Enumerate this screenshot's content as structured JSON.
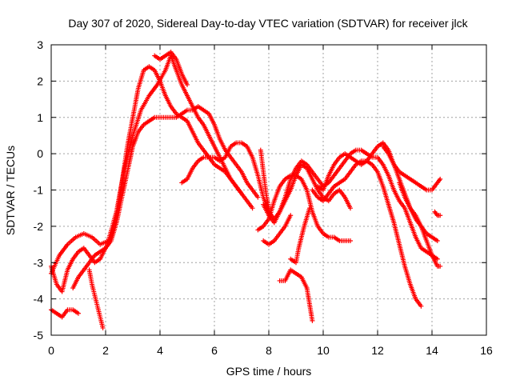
{
  "chart_data": {
    "type": "scatter",
    "title": "Day 307 of 2020, Sidereal Day-to-day VTEC variation (SDTVAR) for receiver jlck",
    "xlabel": "GPS time / hours",
    "ylabel": "SDTVAR / TECUs",
    "xlim": [
      0,
      16
    ],
    "ylim": [
      -5,
      3
    ],
    "xticks": [
      0,
      2,
      4,
      6,
      8,
      10,
      12,
      14,
      16
    ],
    "yticks": [
      -5,
      -4,
      -3,
      -2,
      -1,
      0,
      1,
      2,
      3
    ],
    "grid": true,
    "marker": "+",
    "color": "#ff0000",
    "series": [
      {
        "points": [
          [
            0.0,
            -3.1
          ],
          [
            0.2,
            -3.6
          ],
          [
            0.4,
            -3.8
          ],
          [
            0.6,
            -3.2
          ],
          [
            0.8,
            -2.9
          ],
          [
            1.0,
            -2.7
          ],
          [
            1.2,
            -2.6
          ],
          [
            1.4,
            -2.8
          ],
          [
            1.6,
            -3.0
          ],
          [
            1.8,
            -2.9
          ],
          [
            2.0,
            -2.6
          ],
          [
            2.2,
            -2.3
          ],
          [
            2.4,
            -1.7
          ],
          [
            2.6,
            -0.8
          ],
          [
            2.8,
            0.2
          ],
          [
            3.0,
            1.0
          ],
          [
            3.2,
            1.8
          ],
          [
            3.4,
            2.3
          ],
          [
            3.6,
            2.4
          ],
          [
            3.8,
            2.3
          ],
          [
            4.0,
            2.0
          ],
          [
            4.2,
            1.6
          ],
          [
            4.4,
            1.3
          ],
          [
            4.6,
            1.1
          ],
          [
            4.8,
            1.0
          ],
          [
            5.0,
            0.9
          ],
          [
            5.2,
            0.6
          ],
          [
            5.4,
            0.3
          ],
          [
            5.6,
            0.1
          ],
          [
            5.8,
            -0.1
          ],
          [
            6.0,
            -0.3
          ],
          [
            6.2,
            -0.4
          ],
          [
            6.4,
            -0.5
          ],
          [
            6.6,
            -0.7
          ],
          [
            6.8,
            -0.9
          ],
          [
            7.0,
            -1.1
          ]
        ]
      },
      {
        "points": [
          [
            0.0,
            -3.3
          ],
          [
            0.3,
            -2.8
          ],
          [
            0.6,
            -2.5
          ],
          [
            0.9,
            -2.3
          ],
          [
            1.2,
            -2.2
          ],
          [
            1.5,
            -2.3
          ],
          [
            1.8,
            -2.5
          ],
          [
            2.1,
            -2.4
          ],
          [
            2.4,
            -1.6
          ],
          [
            2.7,
            -0.4
          ],
          [
            3.0,
            0.5
          ],
          [
            3.3,
            1.2
          ],
          [
            3.6,
            1.6
          ],
          [
            3.9,
            1.9
          ],
          [
            4.2,
            2.3
          ],
          [
            4.4,
            2.7
          ],
          [
            4.6,
            2.3
          ],
          [
            4.8,
            1.9
          ],
          [
            5.0,
            1.6
          ],
          [
            5.2,
            1.3
          ],
          [
            5.4,
            1.0
          ],
          [
            5.6,
            0.8
          ],
          [
            5.8,
            0.5
          ],
          [
            6.0,
            0.2
          ],
          [
            6.2,
            -0.1
          ],
          [
            6.4,
            -0.4
          ],
          [
            6.6,
            -0.7
          ],
          [
            6.8,
            -0.9
          ],
          [
            7.0,
            -1.1
          ],
          [
            7.2,
            -1.3
          ],
          [
            7.4,
            -1.5
          ]
        ]
      },
      {
        "points": [
          [
            0.8,
            -3.7
          ],
          [
            1.0,
            -3.4
          ],
          [
            1.2,
            -3.2
          ],
          [
            1.4,
            -3.0
          ],
          [
            1.6,
            -2.8
          ],
          [
            1.8,
            -2.7
          ],
          [
            2.0,
            -2.6
          ],
          [
            2.2,
            -2.4
          ],
          [
            2.4,
            -1.9
          ],
          [
            2.6,
            -1.2
          ],
          [
            2.8,
            -0.5
          ],
          [
            3.0,
            0.2
          ],
          [
            3.2,
            0.6
          ],
          [
            3.4,
            0.8
          ],
          [
            3.6,
            0.9
          ],
          [
            3.8,
            1.0
          ],
          [
            4.0,
            1.0
          ],
          [
            4.2,
            1.0
          ],
          [
            4.4,
            1.0
          ],
          [
            4.6,
            1.0
          ],
          [
            4.8,
            1.1
          ],
          [
            5.0,
            1.2
          ],
          [
            5.2,
            1.2
          ],
          [
            5.4,
            1.3
          ],
          [
            5.6,
            1.2
          ],
          [
            5.8,
            1.1
          ],
          [
            6.0,
            0.8
          ],
          [
            6.2,
            0.4
          ],
          [
            6.4,
            0.1
          ],
          [
            6.6,
            -0.1
          ],
          [
            6.8,
            -0.3
          ],
          [
            7.0,
            -0.5
          ],
          [
            7.2,
            -0.8
          ],
          [
            7.4,
            -1.0
          ],
          [
            7.6,
            -1.2
          ]
        ]
      },
      {
        "points": [
          [
            3.8,
            2.7
          ],
          [
            4.0,
            2.6
          ],
          [
            4.2,
            2.7
          ],
          [
            4.4,
            2.8
          ],
          [
            4.6,
            2.6
          ],
          [
            4.8,
            2.2
          ],
          [
            5.0,
            1.9
          ]
        ]
      },
      {
        "points": [
          [
            0.0,
            -4.3
          ],
          [
            0.2,
            -4.4
          ],
          [
            0.4,
            -4.5
          ],
          [
            0.6,
            -4.3
          ],
          [
            0.8,
            -4.3
          ],
          [
            1.0,
            -4.4
          ]
        ]
      },
      {
        "points": [
          [
            1.4,
            -3.2
          ],
          [
            1.5,
            -3.6
          ],
          [
            1.6,
            -3.9
          ],
          [
            1.7,
            -4.2
          ],
          [
            1.8,
            -4.5
          ],
          [
            1.9,
            -4.8
          ]
        ]
      },
      {
        "points": [
          [
            4.8,
            -0.8
          ],
          [
            5.0,
            -0.7
          ],
          [
            5.2,
            -0.4
          ],
          [
            5.4,
            -0.2
          ],
          [
            5.6,
            -0.1
          ],
          [
            5.8,
            -0.1
          ],
          [
            6.0,
            -0.1
          ],
          [
            6.2,
            -0.2
          ],
          [
            6.4,
            -0.1
          ],
          [
            6.6,
            0.2
          ],
          [
            6.8,
            0.3
          ],
          [
            7.0,
            0.3
          ],
          [
            7.2,
            0.2
          ],
          [
            7.4,
            -0.1
          ],
          [
            7.6,
            -0.6
          ],
          [
            7.8,
            -1.2
          ],
          [
            8.0,
            -1.6
          ],
          [
            8.2,
            -1.8
          ],
          [
            8.4,
            -1.6
          ],
          [
            8.6,
            -1.3
          ],
          [
            8.8,
            -1.0
          ],
          [
            9.0,
            -0.6
          ],
          [
            9.2,
            -0.3
          ],
          [
            9.4,
            -0.4
          ],
          [
            9.6,
            -0.7
          ],
          [
            9.8,
            -1.0
          ],
          [
            10.0,
            -1.2
          ],
          [
            10.2,
            -1.3
          ],
          [
            10.4,
            -1.1
          ],
          [
            10.6,
            -1.0
          ],
          [
            10.8,
            -1.2
          ],
          [
            11.0,
            -1.5
          ]
        ]
      },
      {
        "points": [
          [
            7.6,
            -2.1
          ],
          [
            7.8,
            -2.0
          ],
          [
            8.0,
            -1.8
          ],
          [
            8.2,
            -1.3
          ],
          [
            8.4,
            -0.9
          ],
          [
            8.6,
            -0.7
          ],
          [
            8.8,
            -0.6
          ],
          [
            9.0,
            -0.6
          ],
          [
            9.2,
            -0.7
          ],
          [
            9.4,
            -1.0
          ],
          [
            9.6,
            -1.6
          ],
          [
            9.8,
            -2.0
          ],
          [
            10.0,
            -2.2
          ],
          [
            10.2,
            -2.3
          ],
          [
            10.4,
            -2.3
          ],
          [
            10.6,
            -2.4
          ],
          [
            10.8,
            -2.4
          ],
          [
            11.0,
            -2.4
          ]
        ]
      },
      {
        "points": [
          [
            7.8,
            -1.4
          ],
          [
            8.0,
            -1.7
          ],
          [
            8.2,
            -1.9
          ],
          [
            8.4,
            -1.6
          ],
          [
            8.6,
            -1.2
          ],
          [
            8.8,
            -0.7
          ],
          [
            9.0,
            -0.4
          ],
          [
            9.2,
            -0.2
          ],
          [
            9.4,
            -0.3
          ],
          [
            9.6,
            -0.5
          ],
          [
            9.8,
            -0.7
          ],
          [
            10.0,
            -0.9
          ],
          [
            10.2,
            -0.8
          ],
          [
            10.4,
            -0.6
          ],
          [
            10.6,
            -0.4
          ],
          [
            10.8,
            -0.2
          ],
          [
            11.0,
            0.0
          ],
          [
            11.2,
            0.1
          ],
          [
            11.4,
            0.1
          ],
          [
            11.6,
            0.0
          ],
          [
            11.8,
            -0.1
          ],
          [
            12.0,
            -0.1
          ],
          [
            12.2,
            -0.3
          ],
          [
            12.4,
            -0.6
          ],
          [
            12.6,
            -1.0
          ],
          [
            12.8,
            -1.3
          ],
          [
            13.0,
            -1.5
          ],
          [
            13.2,
            -1.9
          ],
          [
            13.4,
            -2.3
          ],
          [
            13.6,
            -2.6
          ],
          [
            13.8,
            -2.7
          ],
          [
            14.0,
            -2.8
          ],
          [
            14.2,
            -2.9
          ]
        ]
      },
      {
        "points": [
          [
            9.8,
            -0.9
          ],
          [
            10.0,
            -1.0
          ],
          [
            10.2,
            -0.6
          ],
          [
            10.4,
            -0.3
          ],
          [
            10.6,
            -0.1
          ],
          [
            10.8,
            0.0
          ],
          [
            11.0,
            -0.1
          ],
          [
            11.2,
            -0.2
          ],
          [
            11.4,
            -0.3
          ],
          [
            11.6,
            -0.2
          ],
          [
            11.8,
            0.0
          ],
          [
            12.0,
            0.2
          ],
          [
            12.2,
            0.3
          ],
          [
            12.4,
            0.1
          ],
          [
            12.6,
            -0.3
          ],
          [
            12.8,
            -0.7
          ],
          [
            13.0,
            -1.1
          ],
          [
            13.2,
            -1.5
          ],
          [
            13.4,
            -1.8
          ],
          [
            13.6,
            -2.0
          ],
          [
            13.8,
            -2.2
          ],
          [
            14.0,
            -2.3
          ],
          [
            14.2,
            -2.4
          ]
        ]
      },
      {
        "points": [
          [
            9.6,
            -1.0
          ],
          [
            9.8,
            -1.2
          ],
          [
            10.0,
            -1.3
          ],
          [
            10.2,
            -1.1
          ],
          [
            10.4,
            -0.9
          ],
          [
            10.6,
            -0.8
          ],
          [
            10.8,
            -0.7
          ],
          [
            11.0,
            -0.5
          ],
          [
            11.2,
            -0.3
          ],
          [
            11.4,
            -0.2
          ],
          [
            11.6,
            -0.2
          ],
          [
            11.8,
            -0.3
          ],
          [
            12.0,
            -0.5
          ],
          [
            12.2,
            -0.9
          ],
          [
            12.4,
            -1.4
          ],
          [
            12.6,
            -1.9
          ],
          [
            12.8,
            -2.5
          ],
          [
            13.0,
            -3.1
          ],
          [
            13.2,
            -3.6
          ],
          [
            13.4,
            -4.0
          ],
          [
            13.6,
            -4.2
          ]
        ]
      },
      {
        "points": [
          [
            12.2,
            0.2
          ],
          [
            12.4,
            0.0
          ],
          [
            12.6,
            -0.3
          ],
          [
            12.8,
            -0.5
          ],
          [
            13.0,
            -0.6
          ],
          [
            13.2,
            -0.7
          ],
          [
            13.4,
            -0.8
          ],
          [
            13.6,
            -0.9
          ],
          [
            13.8,
            -1.0
          ],
          [
            14.0,
            -1.0
          ],
          [
            14.2,
            -0.8
          ],
          [
            14.3,
            -0.7
          ]
        ]
      },
      {
        "points": [
          [
            12.8,
            -0.8
          ],
          [
            13.0,
            -1.2
          ],
          [
            13.2,
            -1.5
          ],
          [
            13.4,
            -1.7
          ],
          [
            13.6,
            -2.0
          ],
          [
            13.8,
            -2.4
          ],
          [
            14.0,
            -2.8
          ],
          [
            14.2,
            -3.1
          ],
          [
            14.3,
            -3.1
          ]
        ]
      },
      {
        "points": [
          [
            14.1,
            -1.6
          ],
          [
            14.2,
            -1.7
          ],
          [
            14.3,
            -1.7
          ]
        ]
      },
      {
        "points": [
          [
            8.4,
            -3.5
          ],
          [
            8.6,
            -3.5
          ],
          [
            8.8,
            -3.2
          ],
          [
            9.0,
            -3.3
          ],
          [
            9.2,
            -3.4
          ],
          [
            9.4,
            -3.7
          ],
          [
            9.6,
            -4.6
          ]
        ]
      },
      {
        "points": [
          [
            8.8,
            -2.9
          ],
          [
            9.0,
            -3.0
          ],
          [
            9.1,
            -2.6
          ],
          [
            9.3,
            -2.0
          ],
          [
            9.5,
            -1.5
          ]
        ]
      },
      {
        "points": [
          [
            7.7,
            0.1
          ],
          [
            7.8,
            -0.5
          ],
          [
            7.9,
            -1.1
          ],
          [
            8.0,
            -1.5
          ]
        ]
      },
      {
        "points": [
          [
            7.8,
            -2.4
          ],
          [
            8.0,
            -2.5
          ],
          [
            8.2,
            -2.4
          ],
          [
            8.4,
            -2.2
          ],
          [
            8.6,
            -2.0
          ],
          [
            8.8,
            -1.7
          ]
        ]
      }
    ]
  }
}
